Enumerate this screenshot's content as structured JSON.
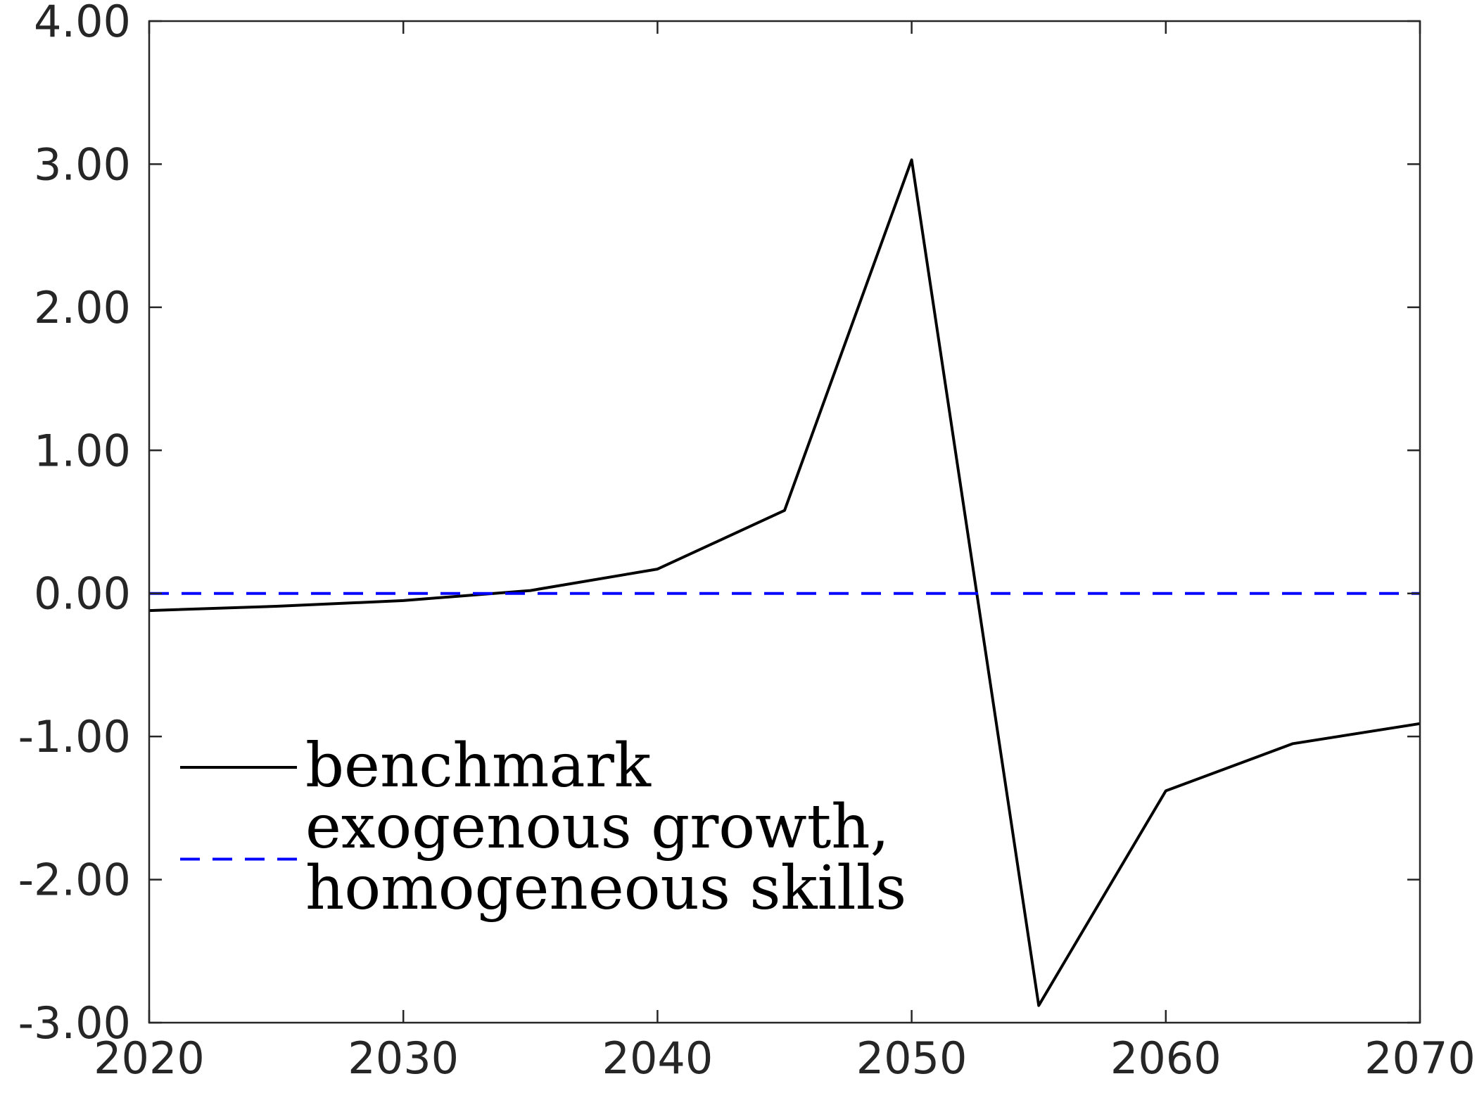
{
  "chart_data": {
    "type": "line",
    "title": "",
    "xlabel": "",
    "ylabel": "",
    "xlim": [
      2020,
      2070
    ],
    "ylim": [
      -3,
      4
    ],
    "x_ticks": [
      2020,
      2030,
      2040,
      2050,
      2060,
      2070
    ],
    "x_tick_labels": [
      "2020",
      "2030",
      "2040",
      "2050",
      "2060",
      "2070"
    ],
    "y_ticks": [
      4,
      3,
      2,
      1,
      0,
      -1,
      -2,
      -3
    ],
    "y_tick_labels": [
      "4.00",
      "3.00",
      "2.00",
      "1.00",
      "0.00",
      "-1.00",
      "-2.00",
      "-3.00"
    ],
    "grid": false,
    "legend_position": "bottom-left",
    "series": [
      {
        "name": "benchmark",
        "legend_lines": [
          "benchmark"
        ],
        "color": "#000000",
        "dash": "solid",
        "x": [
          2020,
          2025,
          2030,
          2035,
          2040,
          2045,
          2050,
          2055,
          2060,
          2065,
          2070
        ],
        "y": [
          -0.12,
          -0.09,
          -0.05,
          0.02,
          0.17,
          0.58,
          3.03,
          -2.88,
          -1.38,
          -1.05,
          -0.91
        ]
      },
      {
        "name": "exogenous growth, homogeneous skills",
        "legend_lines": [
          "exogenous growth,",
          "homogeneous skills"
        ],
        "color": "#0000ff",
        "dash": "dashed",
        "x": [
          2020,
          2025,
          2030,
          2035,
          2040,
          2045,
          2050,
          2055,
          2060,
          2065,
          2070
        ],
        "y": [
          0,
          0,
          0,
          0,
          0,
          0,
          0,
          0,
          0,
          0,
          0
        ]
      }
    ]
  }
}
